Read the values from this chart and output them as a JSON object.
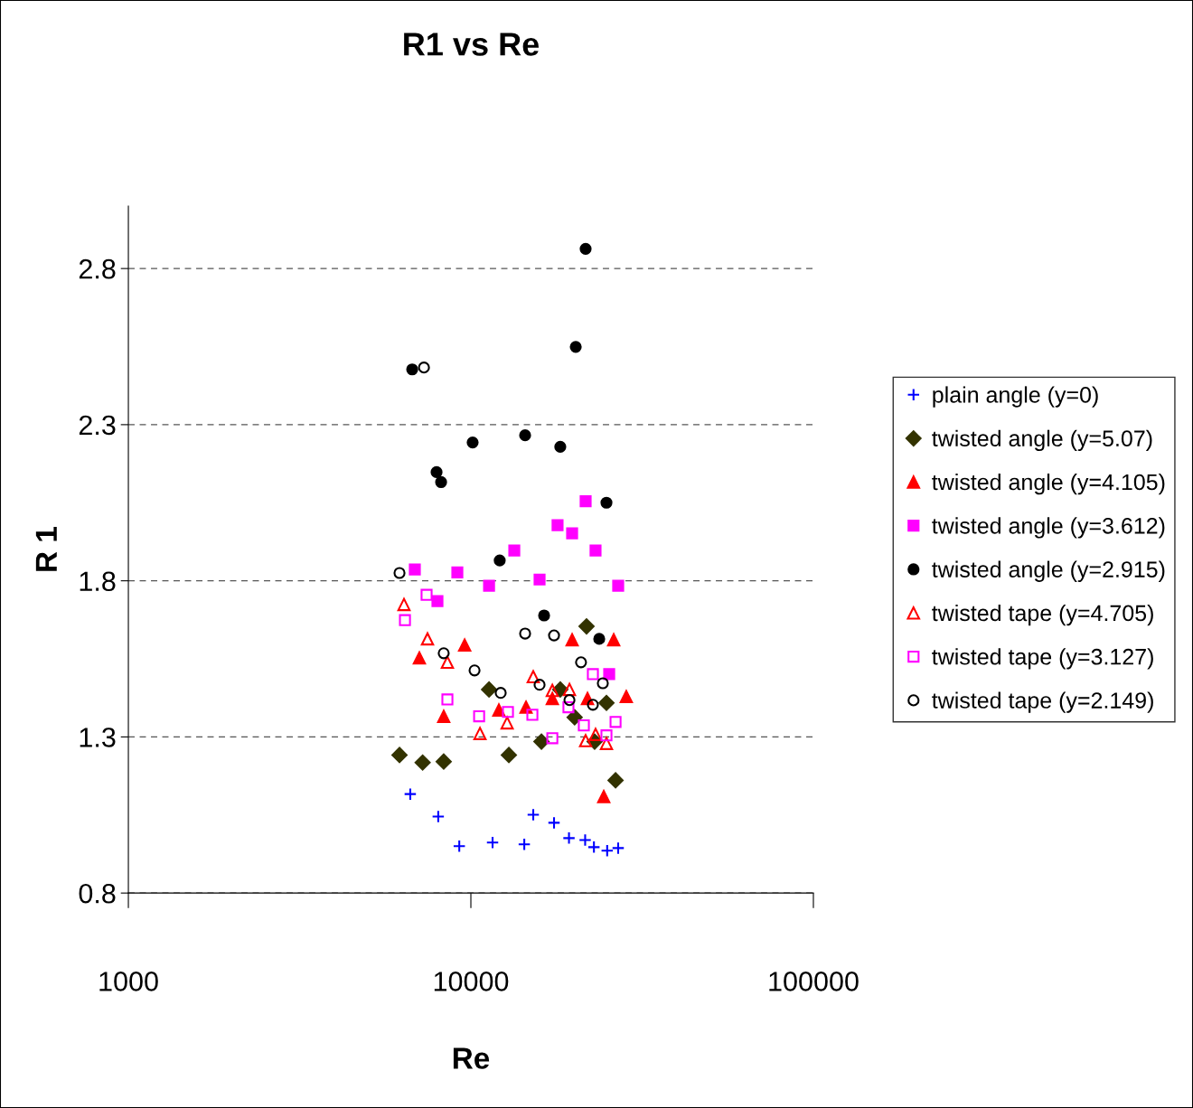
{
  "chart_data": {
    "type": "scatter",
    "title": "R1 vs Re",
    "xlabel": "Re",
    "ylabel": "R 1",
    "log": "x",
    "xlim": [
      1000,
      100000
    ],
    "xticks": [
      1000,
      10000,
      100000
    ],
    "ylim": [
      0.8,
      3.0
    ],
    "yticks": [
      0.8,
      1.3,
      1.8,
      2.3,
      2.8
    ],
    "grid": "y",
    "legend": "right",
    "series": [
      {
        "name": "plain angle (y=0)",
        "color": "#0000ff",
        "marker": "cross",
        "x": [
          6653,
          8030,
          9250,
          11570,
          14320,
          15210,
          17490,
          19340,
          21560,
          22870,
          25000,
          26920
        ],
        "values": [
          1.117,
          1.045,
          0.95,
          0.962,
          0.956,
          1.051,
          1.025,
          0.976,
          0.97,
          0.947,
          0.936,
          0.944
        ]
      },
      {
        "name": "twisted angle (y=5.07)",
        "color": "#333300",
        "marker": "diamond",
        "x": [
          6189,
          7230,
          8331,
          11300,
          12910,
          16070,
          18240,
          20090,
          21760,
          22980,
          24880,
          26450
        ],
        "values": [
          1.242,
          1.218,
          1.221,
          1.452,
          1.242,
          1.285,
          1.452,
          1.363,
          1.654,
          1.285,
          1.409,
          1.161
        ]
      },
      {
        "name": "twisted angle (y=4.105)",
        "color": "#ff0000",
        "marker": "triangle",
        "x": [
          7074,
          8331,
          9590,
          12070,
          14490,
          17290,
          19750,
          21900,
          24430,
          26120,
          28430
        ],
        "values": [
          1.553,
          1.366,
          1.594,
          1.386,
          1.395,
          1.423,
          1.611,
          1.423,
          1.109,
          1.611,
          1.429
        ]
      },
      {
        "name": "twisted angle (y=3.612)",
        "color": "#ff00ff",
        "marker": "square",
        "x": [
          6861,
          7987,
          9130,
          11300,
          13390,
          15870,
          17910,
          19750,
          21630,
          23120,
          25340,
          26920
        ],
        "values": [
          1.836,
          1.735,
          1.827,
          1.784,
          1.897,
          1.804,
          1.978,
          1.952,
          2.055,
          1.897,
          1.501,
          1.784
        ]
      },
      {
        "name": "twisted angle (y=2.915)",
        "color": "#000000",
        "marker": "circle",
        "x": [
          6740,
          7940,
          8186,
          10120,
          12140,
          14400,
          16360,
          18240,
          20240,
          21630,
          23700,
          24880
        ],
        "values": [
          2.477,
          2.148,
          2.116,
          2.243,
          1.865,
          2.266,
          1.689,
          2.229,
          2.549,
          2.863,
          1.614,
          2.05
        ]
      },
      {
        "name": "twisted tape (y=4.705)",
        "color": "#ff0000",
        "marker": "triangle",
        "x": [
          6378,
          7470,
          8540,
          10630,
          12760,
          15210,
          17290,
          19400,
          21630,
          23120,
          24880
        ],
        "values": [
          1.724,
          1.614,
          1.539,
          1.311,
          1.345,
          1.493,
          1.449,
          1.452,
          1.288,
          1.308,
          1.279
        ]
      },
      {
        "name": "twisted tape (y=3.127)",
        "color": "#ff00ff",
        "marker": "square",
        "x": [
          6420,
          7425,
          8540,
          10570,
          12830,
          15120,
          17290,
          19270,
          21370,
          22710,
          24880,
          26450
        ],
        "values": [
          1.674,
          1.755,
          1.42,
          1.366,
          1.38,
          1.371,
          1.296,
          1.395,
          1.337,
          1.501,
          1.305,
          1.348
        ]
      },
      {
        "name": "twisted tape (y=2.149)",
        "color": "#000000",
        "marker": "circle",
        "x": [
          6189,
          7295,
          8331,
          10250,
          12220,
          14400,
          15870,
          17490,
          19400,
          20970,
          22710,
          24280
        ],
        "values": [
          1.825,
          2.483,
          1.568,
          1.513,
          1.441,
          1.631,
          1.467,
          1.625,
          1.418,
          1.539,
          1.403,
          1.472
        ]
      }
    ]
  }
}
